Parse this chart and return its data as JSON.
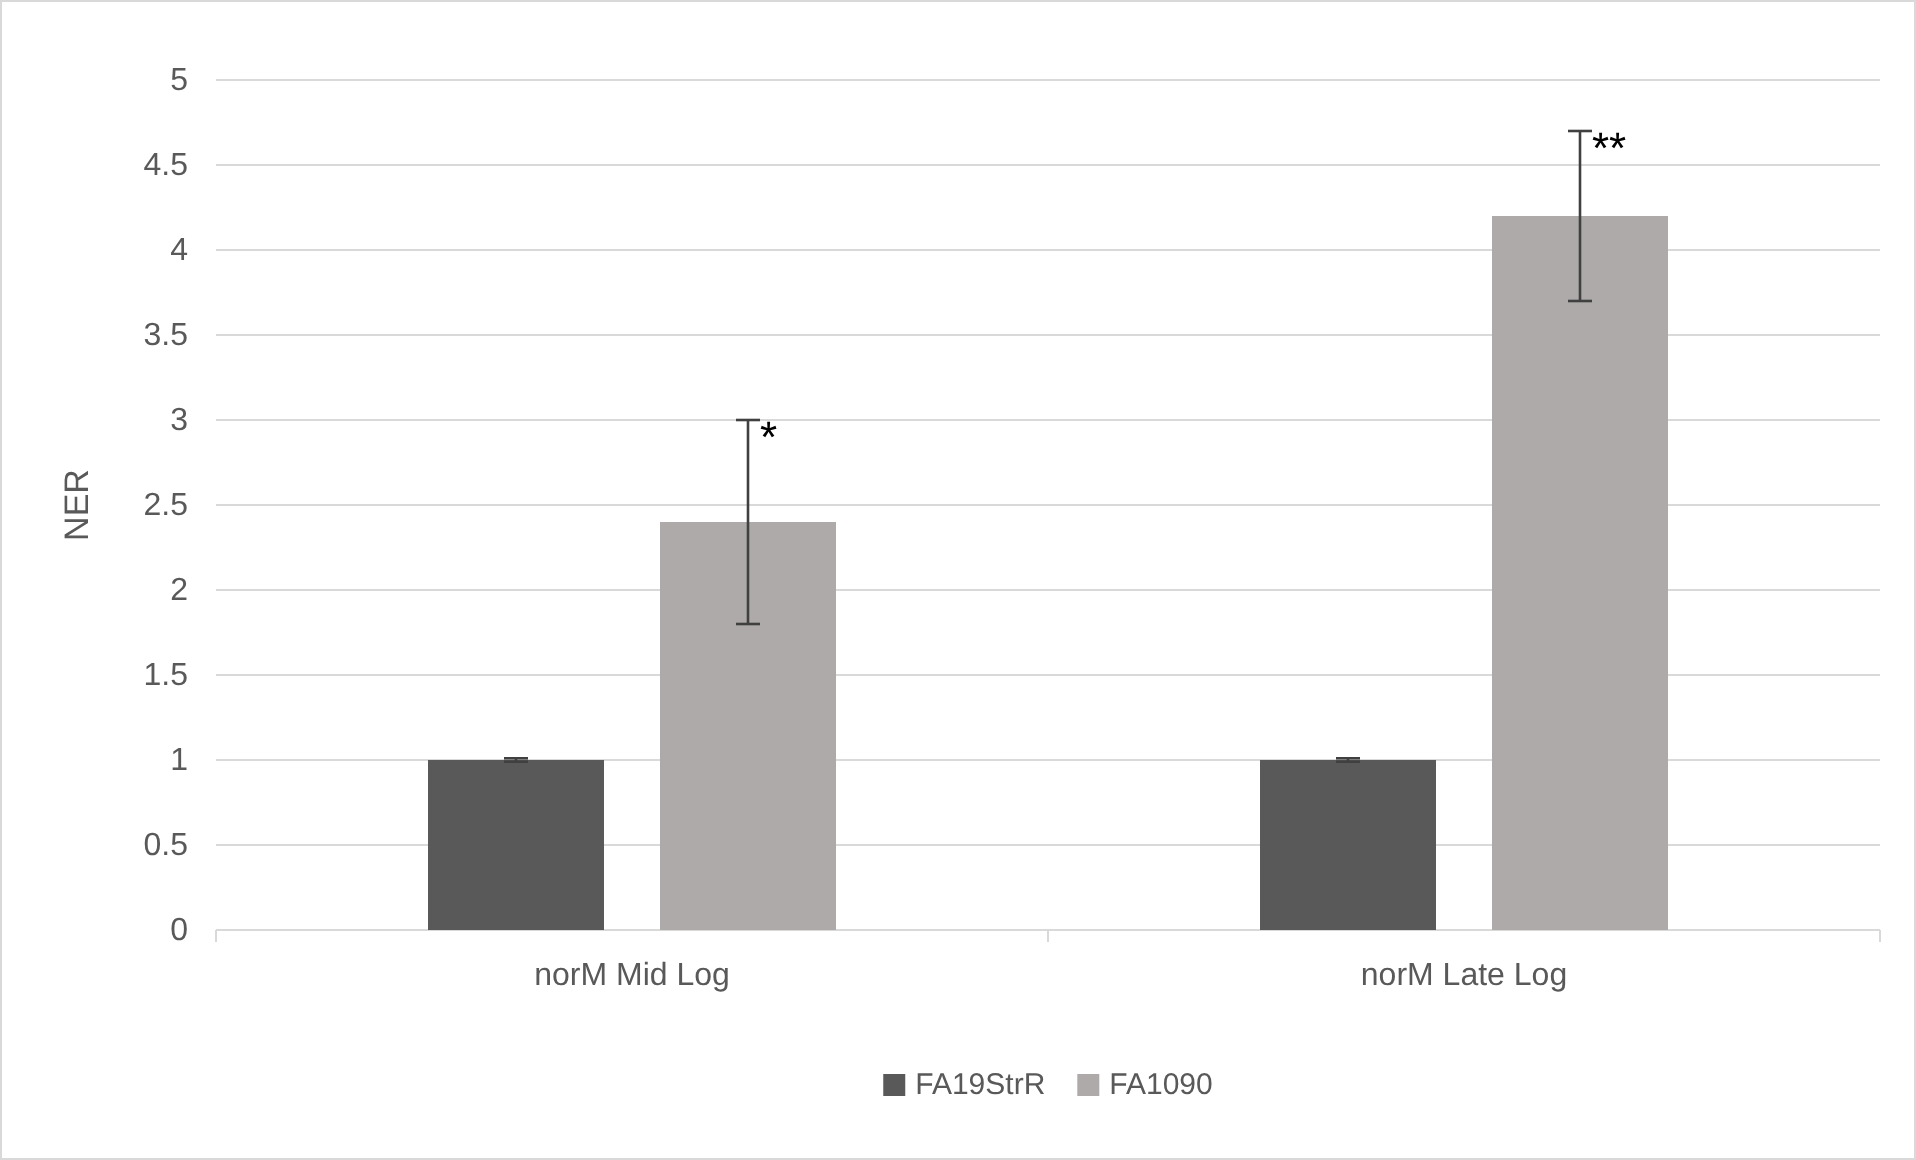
{
  "chart_data": {
    "type": "bar",
    "ylabel": "NER",
    "categories": [
      "norM Mid Log",
      "norM Late Log"
    ],
    "series": [
      {
        "name": "FA19StrR",
        "color": "#595959",
        "values": [
          1,
          1
        ],
        "errors": [
          0.01,
          0.01
        ]
      },
      {
        "name": "FA1090",
        "color": "#aeaaaa",
        "values": [
          2.4,
          4.2
        ],
        "errors": [
          0.6,
          0.5
        ]
      }
    ],
    "ylim": [
      0,
      5
    ],
    "yticks": [
      0,
      0.5,
      1,
      1.5,
      2,
      2.5,
      3,
      3.5,
      4,
      4.5,
      5
    ],
    "grid": "y",
    "legend": "bottom",
    "annotations": [
      "*",
      "**"
    ]
  }
}
